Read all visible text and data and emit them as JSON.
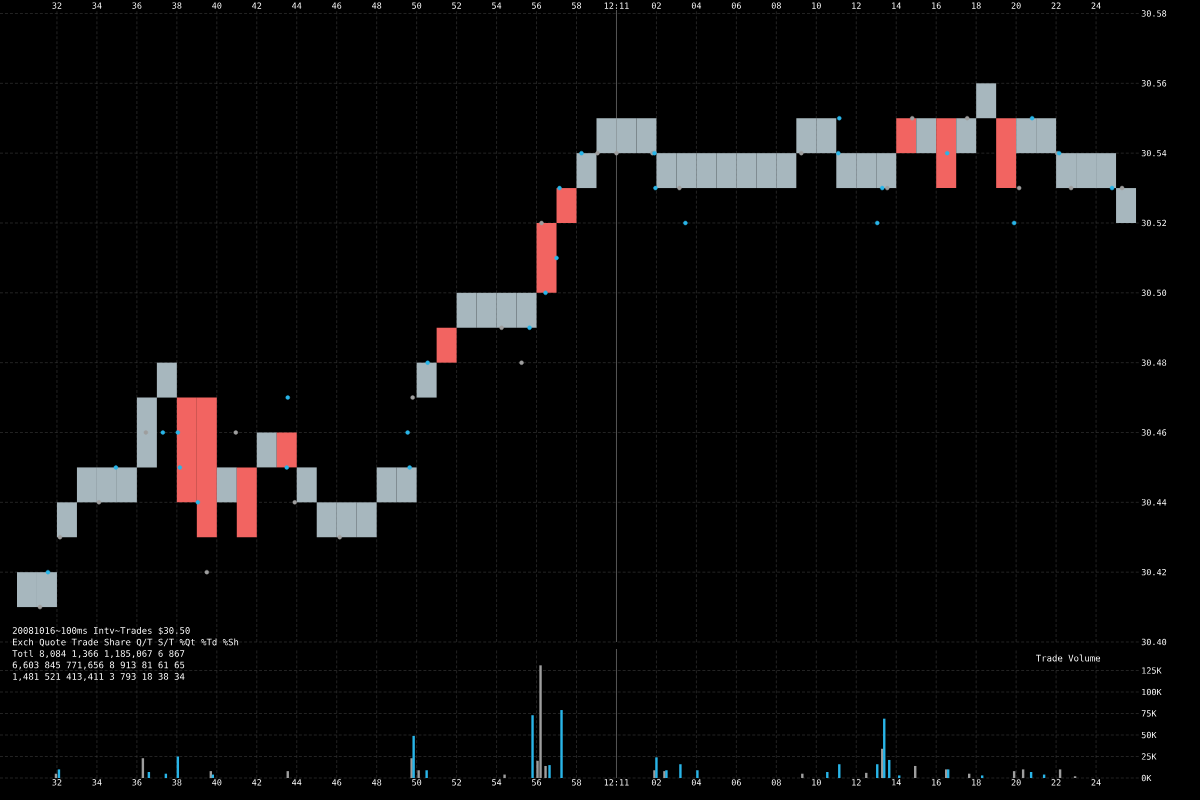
{
  "chart_data": [
    {
      "type": "bar",
      "xlim": [
        "2008-10-16T12:10:29.15",
        "2008-10-16T12:11:26.2"
      ],
      "ylim": [
        30.4,
        30.581
      ],
      "grid": true,
      "xticks": [
        {
          "value": "2008-10-16T12:10:32",
          "label": "32"
        },
        {
          "value": "2008-10-16T12:10:34",
          "label": "34"
        },
        {
          "value": "2008-10-16T12:10:36",
          "label": "36"
        },
        {
          "value": "2008-10-16T12:10:38",
          "label": "38"
        },
        {
          "value": "2008-10-16T12:10:40",
          "label": "40"
        },
        {
          "value": "2008-10-16T12:10:42",
          "label": "42"
        },
        {
          "value": "2008-10-16T12:10:44",
          "label": "44"
        },
        {
          "value": "2008-10-16T12:10:46",
          "label": "46"
        },
        {
          "value": "2008-10-16T12:10:48",
          "label": "48"
        },
        {
          "value": "2008-10-16T12:10:50",
          "label": "50"
        },
        {
          "value": "2008-10-16T12:10:52",
          "label": "52"
        },
        {
          "value": "2008-10-16T12:10:54",
          "label": "54"
        },
        {
          "value": "2008-10-16T12:10:56",
          "label": "56"
        },
        {
          "value": "2008-10-16T12:10:58",
          "label": "58"
        },
        {
          "value": "2008-10-16T12:11:00",
          "label": "12:11"
        },
        {
          "value": "2008-10-16T12:11:02",
          "label": "02"
        },
        {
          "value": "2008-10-16T12:11:04",
          "label": "04"
        },
        {
          "value": "2008-10-16T12:11:06",
          "label": "06"
        },
        {
          "value": "2008-10-16T12:11:08",
          "label": "08"
        },
        {
          "value": "2008-10-16T12:11:10",
          "label": "10"
        },
        {
          "value": "2008-10-16T12:11:12",
          "label": "12"
        },
        {
          "value": "2008-10-16T12:11:14",
          "label": "14"
        },
        {
          "value": "2008-10-16T12:11:16",
          "label": "16"
        },
        {
          "value": "2008-10-16T12:11:18",
          "label": "18"
        },
        {
          "value": "2008-10-16T12:11:20",
          "label": "20"
        },
        {
          "value": "2008-10-16T12:11:22",
          "label": "22"
        },
        {
          "value": "2008-10-16T12:11:24",
          "label": "24"
        }
      ],
      "yticks": [
        {
          "value": 30.4,
          "label": "30.40"
        },
        30.42,
        30.44,
        30.46,
        30.48,
        {
          "value": 30.5,
          "label": "30.50"
        },
        30.52,
        30.54,
        30.56,
        30.58
      ],
      "ref_lines": [
        {
          "axis": "x",
          "value": "2008-10-16T12:11:00",
          "color": "#555555"
        }
      ],
      "series": [
        {
          "type": "bar",
          "x": [
            "2008-10-16T12:10:30.5",
            "2008-10-16T12:10:31.5",
            "2008-10-16T12:10:32.5",
            "2008-10-16T12:10:33.5",
            "2008-10-16T12:10:34.5",
            "2008-10-16T12:10:35.5",
            "2008-10-16T12:10:36.5",
            "2008-10-16T12:10:37.5",
            "2008-10-16T12:10:38.5",
            "2008-10-16T12:10:39.5",
            "2008-10-16T12:10:40.5",
            "2008-10-16T12:10:41.5",
            "2008-10-16T12:10:42.5",
            "2008-10-16T12:10:43.5",
            "2008-10-16T12:10:44.5",
            "2008-10-16T12:10:45.5",
            "2008-10-16T12:10:46.5",
            "2008-10-16T12:10:47.5",
            "2008-10-16T12:10:48.5",
            "2008-10-16T12:10:49.5",
            "2008-10-16T12:10:50.5",
            "2008-10-16T12:10:51.5",
            "2008-10-16T12:10:52.5",
            "2008-10-16T12:10:53.5",
            "2008-10-16T12:10:54.5",
            "2008-10-16T12:10:55.5",
            "2008-10-16T12:10:56.5",
            "2008-10-16T12:10:57.5",
            "2008-10-16T12:10:58.5",
            "2008-10-16T12:10:59.5",
            "2008-10-16T12:11:00.5",
            "2008-10-16T12:11:01.5",
            "2008-10-16T12:11:02.5",
            "2008-10-16T12:11:03.5",
            "2008-10-16T12:11:04.5",
            "2008-10-16T12:11:05.5",
            "2008-10-16T12:11:06.5",
            "2008-10-16T12:11:07.5",
            "2008-10-16T12:11:08.5",
            "2008-10-16T12:11:09.5",
            "2008-10-16T12:11:10.5",
            "2008-10-16T12:11:11.5",
            "2008-10-16T12:11:12.5",
            "2008-10-16T12:11:13.5",
            "2008-10-16T12:11:14.5",
            "2008-10-16T12:11:15.5",
            "2008-10-16T12:11:16.5",
            "2008-10-16T12:11:17.5",
            "2008-10-16T12:11:18.5",
            "2008-10-16T12:11:19.5",
            "2008-10-16T12:11:20.5",
            "2008-10-16T12:11:21.5",
            "2008-10-16T12:11:22.5",
            "2008-10-16T12:11:23.5",
            "2008-10-16T12:11:24.5",
            "2008-10-16T12:11:25.5"
          ],
          "base": [
            30.41,
            30.41,
            30.43,
            30.44,
            30.44,
            30.44,
            30.45,
            30.47,
            30.44,
            30.43,
            30.44,
            30.43,
            30.45,
            30.45,
            30.44,
            30.43,
            30.43,
            30.43,
            30.44,
            30.44,
            30.47,
            30.48,
            30.49,
            30.49,
            30.49,
            30.49,
            30.5,
            30.52,
            30.53,
            30.54,
            30.54,
            30.54,
            30.53,
            30.53,
            30.53,
            30.53,
            30.53,
            30.53,
            30.53,
            30.54,
            30.54,
            30.53,
            30.53,
            30.53,
            30.54,
            30.54,
            30.53,
            30.54,
            30.55,
            30.53,
            30.54,
            30.54,
            30.53,
            30.53,
            30.53,
            30.52
          ],
          "values": [
            0.01,
            0.01,
            0.01,
            0.01,
            0.01,
            0.01,
            0.02,
            0.01,
            0.03,
            0.04,
            0.01,
            0.02,
            0.01,
            0.01,
            0.01,
            0.01,
            0.01,
            0.01,
            0.01,
            0.01,
            0.01,
            0.01,
            0.01,
            0.01,
            0.01,
            0.01,
            0.02,
            0.01,
            0.01,
            0.01,
            0.01,
            0.01,
            0.01,
            0.01,
            0.01,
            0.01,
            0.01,
            0.01,
            0.01,
            0.01,
            0.01,
            0.01,
            0.01,
            0.01,
            0.01,
            0.01,
            0.02,
            0.01,
            0.01,
            0.02,
            0.01,
            0.01,
            0.01,
            0.01,
            0.01,
            0.01
          ],
          "colors": [
            "#a7b7be",
            "#a7b7be",
            "#a7b7be",
            "#a7b7be",
            "#a7b7be",
            "#a7b7be",
            "#a7b7be",
            "#a7b7be",
            "#f26461",
            "#f26461",
            "#a7b7be",
            "#f26461",
            "#a7b7be",
            "#f26461",
            "#a7b7be",
            "#a7b7be",
            "#a7b7be",
            "#a7b7be",
            "#a7b7be",
            "#a7b7be",
            "#a7b7be",
            "#f26461",
            "#a7b7be",
            "#a7b7be",
            "#a7b7be",
            "#a7b7be",
            "#f26461",
            "#f26461",
            "#a7b7be",
            "#a7b7be",
            "#a7b7be",
            "#a7b7be",
            "#a7b7be",
            "#a7b7be",
            "#a7b7be",
            "#a7b7be",
            "#a7b7be",
            "#a7b7be",
            "#a7b7be",
            "#a7b7be",
            "#a7b7be",
            "#a7b7be",
            "#a7b7be",
            "#a7b7be",
            "#f26461",
            "#a7b7be",
            "#f26461",
            "#a7b7be",
            "#a7b7be",
            "#f26461",
            "#a7b7be",
            "#a7b7be",
            "#a7b7be",
            "#a7b7be",
            "#a7b7be",
            "#a7b7be"
          ]
        },
        {
          "type": "scatter",
          "marker": "circle",
          "color": "#9e9e9e",
          "x": [
            "2008-10-16T12:10:31.15",
            "2008-10-16T12:10:32.15",
            "2008-10-16T12:10:34.1",
            "2008-10-16T12:10:36.45",
            "2008-10-16T12:10:39.5",
            "2008-10-16T12:10:40.95",
            "2008-10-16T12:10:43.9",
            "2008-10-16T12:10:46.15",
            "2008-10-16T12:10:49.8",
            "2008-10-16T12:10:54.25",
            "2008-10-16T12:10:55.25",
            "2008-10-16T12:10:56.25",
            "2008-10-16T12:10:59.05",
            "2008-10-16T12:11:00",
            "2008-10-16T12:11:01.8",
            "2008-10-16T12:11:03.15",
            "2008-10-16T12:11:09.25",
            "2008-10-16T12:11:13.55",
            "2008-10-16T12:11:14.8",
            "2008-10-16T12:11:17.55",
            "2008-10-16T12:11:20.15",
            "2008-10-16T12:11:22.05",
            "2008-10-16T12:11:22.75",
            "2008-10-16T12:11:25.3"
          ],
          "values": [
            30.41,
            30.43,
            30.44,
            30.46,
            30.42,
            30.46,
            30.44,
            30.43,
            30.47,
            30.49,
            30.48,
            30.52,
            30.54,
            30.54,
            30.54,
            30.53,
            30.54,
            30.53,
            30.55,
            30.55,
            30.53,
            30.54,
            30.53,
            30.53
          ]
        },
        {
          "type": "scatter",
          "marker": "circle",
          "color": "#29b5e8",
          "x": [
            "2008-10-16T12:10:31.55",
            "2008-10-16T12:10:34.95",
            "2008-10-16T12:10:37.3",
            "2008-10-16T12:10:38.05",
            "2008-10-16T12:10:38.15",
            "2008-10-16T12:10:39.05",
            "2008-10-16T12:10:43.5",
            "2008-10-16T12:10:43.55",
            "2008-10-16T12:10:49.55",
            "2008-10-16T12:10:49.65",
            "2008-10-16T12:10:50.55",
            "2008-10-16T12:10:55.65",
            "2008-10-16T12:10:56.45",
            "2008-10-16T12:10:57",
            "2008-10-16T12:10:57.15",
            "2008-10-16T12:10:58.25",
            "2008-10-16T12:11:01.9",
            "2008-10-16T12:11:01.95",
            "2008-10-16T12:11:03.45",
            "2008-10-16T12:11:11.1",
            "2008-10-16T12:11:11.15",
            "2008-10-16T12:11:13.05",
            "2008-10-16T12:11:13.3",
            "2008-10-16T12:11:16.55",
            "2008-10-16T12:11:19.9",
            "2008-10-16T12:11:20.8",
            "2008-10-16T12:11:22.15",
            "2008-10-16T12:11:24.8"
          ],
          "values": [
            30.42,
            30.45,
            30.46,
            30.46,
            30.45,
            30.44,
            30.45,
            30.47,
            30.46,
            30.45,
            30.48,
            30.49,
            30.5,
            30.51,
            30.53,
            30.54,
            30.54,
            30.53,
            30.52,
            30.54,
            30.55,
            30.52,
            30.53,
            30.54,
            30.52,
            30.55,
            30.54,
            30.53
          ]
        }
      ]
    },
    {
      "type": "bar",
      "title": "Trade Volume",
      "xlim": [
        "2008-10-16T12:10:29.15",
        "2008-10-16T12:11:26.2"
      ],
      "ylim": [
        0,
        150000
      ],
      "grid": true,
      "xticks": [
        {
          "value": "2008-10-16T12:10:32",
          "label": "32"
        },
        {
          "value": "2008-10-16T12:10:34",
          "label": "34"
        },
        {
          "value": "2008-10-16T12:10:36",
          "label": "36"
        },
        {
          "value": "2008-10-16T12:10:38",
          "label": "38"
        },
        {
          "value": "2008-10-16T12:10:40",
          "label": "40"
        },
        {
          "value": "2008-10-16T12:10:42",
          "label": "42"
        },
        {
          "value": "2008-10-16T12:10:44",
          "label": "44"
        },
        {
          "value": "2008-10-16T12:10:46",
          "label": "46"
        },
        {
          "value": "2008-10-16T12:10:48",
          "label": "48"
        },
        {
          "value": "2008-10-16T12:10:50",
          "label": "50"
        },
        {
          "value": "2008-10-16T12:10:52",
          "label": "52"
        },
        {
          "value": "2008-10-16T12:10:54",
          "label": "54"
        },
        {
          "value": "2008-10-16T12:10:56",
          "label": "56"
        },
        {
          "value": "2008-10-16T12:10:58",
          "label": "58"
        },
        {
          "value": "2008-10-16T12:11:00",
          "label": "12:11"
        },
        {
          "value": "2008-10-16T12:11:02",
          "label": "02"
        },
        {
          "value": "2008-10-16T12:11:04",
          "label": "04"
        },
        {
          "value": "2008-10-16T12:11:06",
          "label": "06"
        },
        {
          "value": "2008-10-16T12:11:08",
          "label": "08"
        },
        {
          "value": "2008-10-16T12:11:10",
          "label": "10"
        },
        {
          "value": "2008-10-16T12:11:12",
          "label": "12"
        },
        {
          "value": "2008-10-16T12:11:14",
          "label": "14"
        },
        {
          "value": "2008-10-16T12:11:16",
          "label": "16"
        },
        {
          "value": "2008-10-16T12:11:18",
          "label": "18"
        },
        {
          "value": "2008-10-16T12:11:20",
          "label": "20"
        },
        {
          "value": "2008-10-16T12:11:22",
          "label": "22"
        },
        {
          "value": "2008-10-16T12:11:24",
          "label": "24"
        }
      ],
      "yticks": [
        {
          "value": 0,
          "label": "0K"
        },
        {
          "value": 25000,
          "label": "25K"
        },
        {
          "value": 50000,
          "label": "50K"
        },
        {
          "value": 75000,
          "label": "75K"
        },
        {
          "value": 100000,
          "label": "100K"
        },
        {
          "value": 125000,
          "label": "125K"
        }
      ],
      "ref_lines": [
        {
          "axis": "x",
          "value": "2008-10-16T12:11:00",
          "color": "#555555"
        }
      ],
      "annotations": [
        "20081016~100ms Intv~Trades $30.50",
        "Exch Quote Trade Share Q/T S/T %Qt %Td %Sh",
        "Totl 8,084 1,366 1,185,067 6 867",
        "6,603 845 771,656 8 913 81 61 65",
        "1,481 521 413,411 3 793 18 38 34"
      ],
      "series": [
        {
          "color": "#9e9e9e",
          "x": [
            "2008-10-16T12:10:31.95",
            "2008-10-16T12:10:36.3",
            "2008-10-16T12:10:39.7",
            "2008-10-16T12:10:43.55",
            "2008-10-16T12:10:49.75",
            "2008-10-16T12:10:50.1",
            "2008-10-16T12:10:54.4",
            "2008-10-16T12:10:56.05",
            "2008-10-16T12:10:56.2",
            "2008-10-16T12:10:56.45",
            "2008-10-16T12:11:01.9",
            "2008-10-16T12:11:02.4",
            "2008-10-16T12:11:09.3",
            "2008-10-16T12:11:12.5",
            "2008-10-16T12:11:13.3",
            "2008-10-16T12:11:14.95",
            "2008-10-16T12:11:16.5",
            "2008-10-16T12:11:17.65",
            "2008-10-16T12:11:19.9",
            "2008-10-16T12:11:20.35",
            "2008-10-16T12:11:22.2",
            "2008-10-16T12:11:22.95"
          ],
          "values": [
            5000,
            23000,
            8000,
            8000,
            23000,
            9000,
            4000,
            20000,
            131000,
            14000,
            9000,
            8000,
            5000,
            6000,
            34000,
            14000,
            10000,
            5000,
            8000,
            10000,
            10000,
            2000
          ]
        },
        {
          "color": "#29b5e8",
          "x": [
            "2008-10-16T12:10:32.1",
            "2008-10-16T12:10:36.6",
            "2008-10-16T12:10:37.45",
            "2008-10-16T12:10:38.05",
            "2008-10-16T12:10:39.8",
            "2008-10-16T12:10:49.85",
            "2008-10-16T12:10:50.5",
            "2008-10-16T12:10:55.8",
            "2008-10-16T12:10:56.65",
            "2008-10-16T12:10:57.25",
            "2008-10-16T12:11:02",
            "2008-10-16T12:11:02.5",
            "2008-10-16T12:11:03.2",
            "2008-10-16T12:11:04.05",
            "2008-10-16T12:11:10.55",
            "2008-10-16T12:11:11.15",
            "2008-10-16T12:11:13.05",
            "2008-10-16T12:11:13.4",
            "2008-10-16T12:11:13.65",
            "2008-10-16T12:11:14.15",
            "2008-10-16T12:11:16.6",
            "2008-10-16T12:11:18.3",
            "2008-10-16T12:11:20.75",
            "2008-10-16T12:11:21.4"
          ],
          "values": [
            10000,
            7000,
            5000,
            25000,
            4000,
            49000,
            9000,
            73000,
            15000,
            79000,
            24000,
            9000,
            16000,
            9000,
            7000,
            16000,
            16000,
            69000,
            21000,
            3000,
            10000,
            3000,
            7000,
            4000
          ]
        }
      ]
    }
  ]
}
